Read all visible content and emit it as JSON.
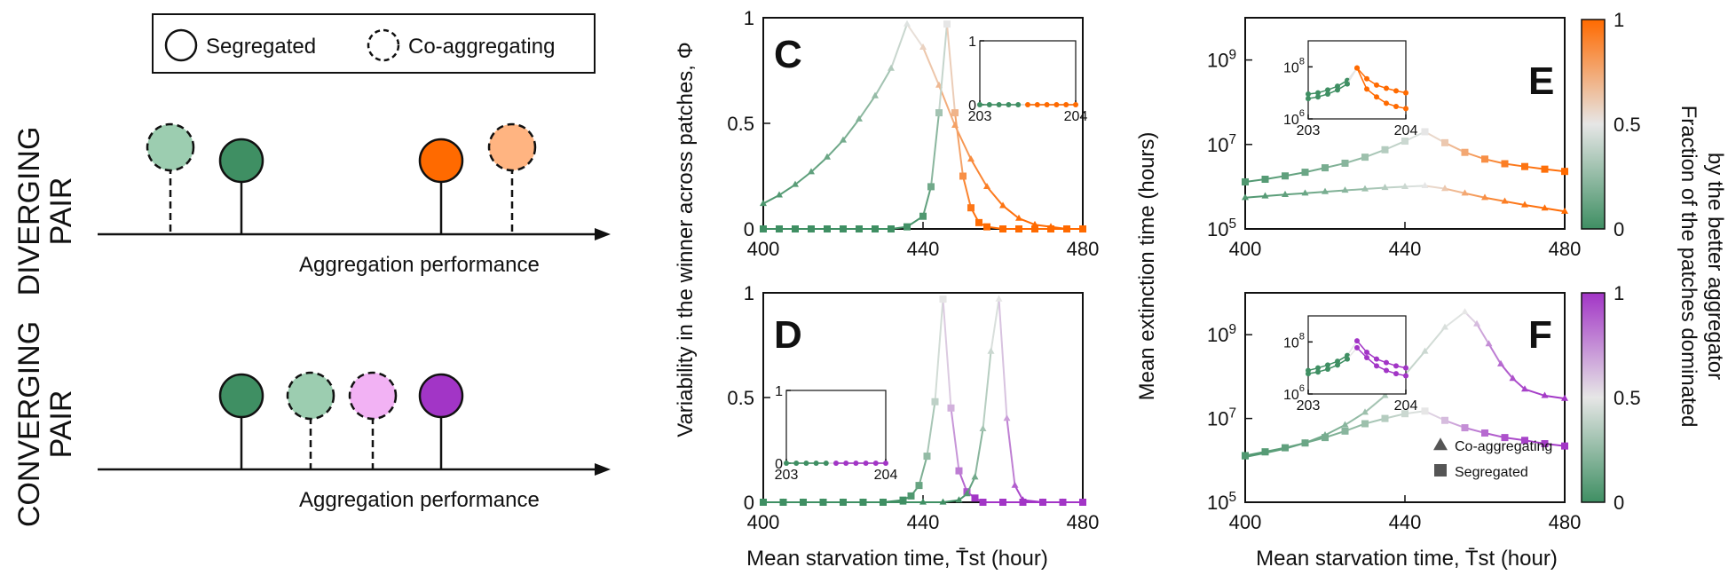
{
  "schematic": {
    "legend": {
      "segregated_label": "Segregated",
      "coaggregating_label": "Co-aggregating"
    },
    "diverging": {
      "title_line1": "DIVERGING",
      "title_line2": "PAIR",
      "axis_label": "Aggregation performance",
      "markers": [
        {
          "kind": "co-aggregating",
          "color": "#9ccdb0"
        },
        {
          "kind": "segregated",
          "color": "#3f8f63"
        },
        {
          "kind": "segregated",
          "color": "#ff6a00"
        },
        {
          "kind": "co-aggregating",
          "color": "#ffb481"
        }
      ]
    },
    "converging": {
      "title_line1": "CONVERGING",
      "title_line2": "PAIR",
      "axis_label": "Aggregation performance",
      "markers": [
        {
          "kind": "segregated",
          "color": "#3f8f63"
        },
        {
          "kind": "co-aggregating",
          "color": "#9ccdb0"
        },
        {
          "kind": "co-aggregating",
          "color": "#f2b2f4"
        },
        {
          "kind": "segregated",
          "color": "#a235c6"
        }
      ]
    }
  },
  "colors": {
    "green": "#3f8f63",
    "neutral": "#e6e6e6",
    "orange": "#ff6a00",
    "purple": "#a235c6"
  },
  "chart_data": [
    {
      "panel": "C",
      "type": "line",
      "xlabel": "",
      "ylabel": "Variability in the winner across patches, Φ",
      "xlim": [
        400,
        480
      ],
      "ylim": [
        0,
        1
      ],
      "xticks": [
        "400",
        "440",
        "480"
      ],
      "yticks": [
        "0",
        "0.5",
        "1"
      ],
      "accent": "orange",
      "series": [
        {
          "kind": "co-aggregating",
          "marker": "triangle",
          "x": [
            400,
            404,
            408,
            412,
            416,
            420,
            424,
            428,
            432,
            436,
            440,
            444,
            448,
            452,
            456,
            460,
            464,
            468,
            472,
            476,
            480
          ],
          "y": [
            0.12,
            0.16,
            0.21,
            0.27,
            0.34,
            0.42,
            0.52,
            0.63,
            0.76,
            0.97,
            0.86,
            0.68,
            0.49,
            0.33,
            0.2,
            0.11,
            0.05,
            0.02,
            0.01,
            0,
            0
          ],
          "frac": [
            0.04,
            0.06,
            0.08,
            0.1,
            0.13,
            0.16,
            0.2,
            0.26,
            0.34,
            0.48,
            0.58,
            0.68,
            0.78,
            0.86,
            0.92,
            0.96,
            0.98,
            1,
            1,
            1,
            1
          ]
        },
        {
          "kind": "segregated",
          "marker": "square",
          "x": [
            400,
            404,
            408,
            412,
            416,
            420,
            424,
            428,
            432,
            436,
            440,
            442,
            444,
            446,
            448,
            450,
            452,
            454,
            456,
            460,
            464,
            468,
            472,
            476,
            480
          ],
          "y": [
            0,
            0,
            0,
            0,
            0,
            0,
            0,
            0,
            0,
            0.01,
            0.06,
            0.2,
            0.55,
            0.97,
            0.55,
            0.25,
            0.1,
            0.03,
            0.01,
            0,
            0,
            0,
            0,
            0,
            0
          ],
          "frac": [
            0,
            0,
            0,
            0,
            0,
            0,
            0,
            0,
            0,
            0.01,
            0.05,
            0.15,
            0.3,
            0.5,
            0.7,
            0.85,
            0.95,
            1,
            1,
            1,
            1,
            1,
            1,
            1,
            1
          ]
        }
      ],
      "inset": {
        "xlim": [
          203,
          204
        ],
        "ylim": [
          0,
          1
        ],
        "xticks": [
          "203",
          "204"
        ],
        "yticks": [
          "0",
          "1"
        ],
        "series": [
          {
            "x": [
              203,
              203.1,
              203.2,
              203.3,
              203.4,
              203.5,
              203.6,
              203.7,
              203.8,
              203.9,
              204
            ],
            "y": [
              0,
              0,
              0,
              0,
              0,
              0,
              0,
              0,
              0,
              0,
              0
            ],
            "frac": [
              0,
              0,
              0,
              0,
              0,
              1,
              1,
              1,
              1,
              1,
              1
            ]
          }
        ]
      }
    },
    {
      "panel": "D",
      "type": "line",
      "xlabel": "Mean starvation time, T̄st (hour)",
      "ylabel": "",
      "xlim": [
        400,
        480
      ],
      "ylim": [
        0,
        1
      ],
      "xticks": [
        "400",
        "440",
        "480"
      ],
      "yticks": [
        "0",
        "0.5",
        "1"
      ],
      "accent": "purple",
      "series": [
        {
          "kind": "segregated",
          "marker": "square",
          "x": [
            400,
            405,
            410,
            415,
            420,
            425,
            430,
            435,
            437,
            439,
            441,
            443,
            445,
            447,
            449,
            451,
            453,
            455,
            460,
            465,
            470,
            475,
            480
          ],
          "y": [
            0,
            0,
            0,
            0,
            0,
            0,
            0,
            0.01,
            0.03,
            0.08,
            0.22,
            0.48,
            0.97,
            0.45,
            0.15,
            0.05,
            0.02,
            0,
            0,
            0,
            0,
            0,
            0
          ],
          "frac": [
            0,
            0,
            0,
            0,
            0,
            0,
            0,
            0.01,
            0.05,
            0.12,
            0.25,
            0.38,
            0.5,
            0.65,
            0.8,
            0.92,
            1,
            1,
            1,
            1,
            1,
            1,
            1
          ]
        },
        {
          "kind": "co-aggregating",
          "marker": "triangle",
          "x": [
            400,
            405,
            410,
            415,
            420,
            425,
            430,
            435,
            440,
            445,
            449,
            451,
            453,
            455,
            457,
            459,
            461,
            463,
            465,
            470,
            475,
            480
          ],
          "y": [
            0,
            0,
            0,
            0,
            0,
            0,
            0,
            0,
            0,
            0,
            0.01,
            0.04,
            0.12,
            0.35,
            0.72,
            0.97,
            0.4,
            0.08,
            0.01,
            0,
            0,
            0
          ],
          "frac": [
            0,
            0,
            0,
            0,
            0,
            0,
            0,
            0,
            0,
            0,
            0.02,
            0.06,
            0.15,
            0.3,
            0.42,
            0.5,
            0.7,
            0.88,
            1,
            1,
            1,
            1
          ]
        }
      ],
      "inset": {
        "xlim": [
          203,
          204
        ],
        "ylim": [
          0,
          1
        ],
        "xticks": [
          "203",
          "204"
        ],
        "yticks": [
          "0",
          "1"
        ],
        "series": [
          {
            "x": [
              203,
              203.1,
              203.2,
              203.3,
              203.4,
              203.5,
              203.6,
              203.7,
              203.8,
              203.9,
              204
            ],
            "y": [
              0,
              0,
              0,
              0,
              0,
              0,
              0,
              0,
              0,
              0,
              0
            ],
            "frac": [
              0,
              0,
              0,
              0,
              0,
              1,
              1,
              1,
              1,
              1,
              1
            ]
          }
        ]
      }
    },
    {
      "panel": "E",
      "type": "line",
      "log_y": true,
      "xlabel": "",
      "ylabel": "Mean extinction time (hours)",
      "xlim": [
        400,
        480
      ],
      "ylim": [
        100000,
        10000000000
      ],
      "xticks": [
        "400",
        "440",
        "480"
      ],
      "yticks": [
        "10^5",
        "10^7",
        "10^9"
      ],
      "accent": "orange",
      "series": [
        {
          "kind": "segregated",
          "marker": "square",
          "x": [
            400,
            405,
            410,
            415,
            420,
            425,
            430,
            435,
            440,
            445,
            450,
            455,
            460,
            465,
            470,
            475,
            480
          ],
          "y": [
            1300000,
            1500000,
            1800000,
            2200000,
            2800000,
            3600000,
            5000000,
            7500000,
            12000000,
            20000000,
            11000000,
            6500000,
            4500000,
            3500000,
            3000000,
            2600000,
            2300000
          ],
          "frac": [
            0.05,
            0.07,
            0.1,
            0.13,
            0.17,
            0.22,
            0.28,
            0.35,
            0.42,
            0.5,
            0.62,
            0.75,
            0.85,
            0.92,
            0.96,
            0.98,
            1
          ]
        },
        {
          "kind": "co-aggregating",
          "marker": "triangle",
          "x": [
            400,
            405,
            410,
            415,
            420,
            425,
            430,
            435,
            440,
            445,
            450,
            455,
            460,
            465,
            470,
            475,
            480
          ],
          "y": [
            550000,
            600000,
            650000,
            700000,
            760000,
            820000,
            880000,
            950000,
            1000000,
            1050000,
            900000,
            700000,
            550000,
            450000,
            370000,
            310000,
            260000
          ],
          "frac": [
            0.05,
            0.07,
            0.1,
            0.13,
            0.17,
            0.22,
            0.28,
            0.35,
            0.42,
            0.5,
            0.62,
            0.75,
            0.85,
            0.92,
            0.96,
            0.98,
            1
          ]
        }
      ],
      "inset": {
        "log_y": true,
        "xlim": [
          203,
          204
        ],
        "ylim": [
          1000000,
          1000000000
        ],
        "xticks": [
          "203",
          "204"
        ],
        "yticks": [
          "10^6",
          "10^8"
        ],
        "series": [
          {
            "x": [
              203,
              203.1,
              203.2,
              203.3,
              203.4,
              203.5,
              203.6,
              203.7,
              203.8,
              203.9,
              204
            ],
            "y": [
              9000000,
              10000000,
              13000000,
              18000000,
              30000000,
              90000000,
              35000000,
              20000000,
              15000000,
              12000000,
              10000000
            ],
            "frac": [
              0,
              0,
              0,
              0,
              0,
              1,
              1,
              1,
              1,
              1,
              1
            ]
          },
          {
            "x": [
              203,
              203.1,
              203.2,
              203.3,
              203.4,
              203.5,
              203.6,
              203.7,
              203.8,
              203.9,
              204
            ],
            "y": [
              6000000,
              7000000,
              9000000,
              13000000,
              22000000,
              90000000,
              14000000,
              7000000,
              4000000,
              3000000,
              2500000
            ],
            "frac": [
              0,
              0,
              0,
              0,
              0,
              1,
              1,
              1,
              1,
              1,
              1
            ]
          }
        ]
      }
    },
    {
      "panel": "F",
      "type": "line",
      "log_y": true,
      "xlabel": "Mean starvation time, T̄st (hour)",
      "ylabel": "",
      "xlim": [
        400,
        480
      ],
      "ylim": [
        100000,
        10000000000
      ],
      "xticks": [
        "400",
        "440",
        "480"
      ],
      "yticks": [
        "10^5",
        "10^7",
        "10^9"
      ],
      "accent": "purple",
      "legend": [
        "Co-aggregating",
        "Segregated"
      ],
      "series": [
        {
          "kind": "co-aggregating",
          "marker": "triangle",
          "x": [
            400,
            405,
            410,
            415,
            420,
            425,
            430,
            435,
            440,
            445,
            450,
            455,
            458,
            461,
            464,
            467,
            470,
            475,
            480
          ],
          "y": [
            1200000,
            1500000,
            1900000,
            2600000,
            4000000,
            7000000,
            14000000,
            35000000,
            110000000,
            400000000,
            1500000000,
            3500000000,
            1800000000,
            600000000,
            200000000,
            90000000,
            50000000,
            35000000,
            30000000
          ],
          "frac": [
            0.05,
            0.07,
            0.1,
            0.13,
            0.17,
            0.22,
            0.28,
            0.33,
            0.38,
            0.42,
            0.46,
            0.5,
            0.62,
            0.75,
            0.85,
            0.92,
            0.96,
            0.98,
            1
          ]
        },
        {
          "kind": "segregated",
          "marker": "square",
          "x": [
            400,
            405,
            410,
            415,
            420,
            425,
            430,
            435,
            440,
            445,
            450,
            455,
            460,
            465,
            470,
            475,
            480
          ],
          "y": [
            1300000,
            1600000,
            2000000,
            2600000,
            3500000,
            5000000,
            7500000,
            10000000,
            13000000,
            15000000,
            9000000,
            6000000,
            4500000,
            3500000,
            3000000,
            2500000,
            2200000
          ],
          "frac": [
            0.05,
            0.07,
            0.1,
            0.13,
            0.17,
            0.22,
            0.28,
            0.35,
            0.42,
            0.5,
            0.62,
            0.75,
            0.85,
            0.92,
            0.96,
            0.98,
            1
          ]
        }
      ],
      "inset": {
        "log_y": true,
        "xlim": [
          203,
          204
        ],
        "ylim": [
          1000000,
          1000000000
        ],
        "xticks": [
          "203",
          "204"
        ],
        "yticks": [
          "10^6",
          "10^8"
        ],
        "series": [
          {
            "x": [
              203,
              203.1,
              203.2,
              203.3,
              203.4,
              203.5,
              203.6,
              203.7,
              203.8,
              203.9,
              204
            ],
            "y": [
              8000000,
              10000000,
              13000000,
              18000000,
              30000000,
              110000000,
              40000000,
              22000000,
              16000000,
              12000000,
              10000000
            ],
            "frac": [
              0,
              0,
              0,
              0,
              0,
              1,
              1,
              1,
              1,
              1,
              1
            ]
          },
          {
            "x": [
              203,
              203.1,
              203.2,
              203.3,
              203.4,
              203.5,
              203.6,
              203.7,
              203.8,
              203.9,
              204
            ],
            "y": [
              6000000,
              7000000,
              9000000,
              13000000,
              22000000,
              60000000,
              25000000,
              12000000,
              8000000,
              6000000,
              5000000
            ],
            "frac": [
              0,
              0,
              0,
              0,
              0,
              1,
              1,
              1,
              1,
              1,
              1
            ]
          }
        ]
      }
    }
  ],
  "colorbars": [
    {
      "accent": "orange",
      "ticks": [
        "1",
        "0.5",
        "0"
      ],
      "label_line1": "Fraction of the patches dominated",
      "label_line2": "by the better aggregator"
    },
    {
      "accent": "purple",
      "ticks": [
        "1",
        "0.5",
        "0"
      ]
    }
  ]
}
